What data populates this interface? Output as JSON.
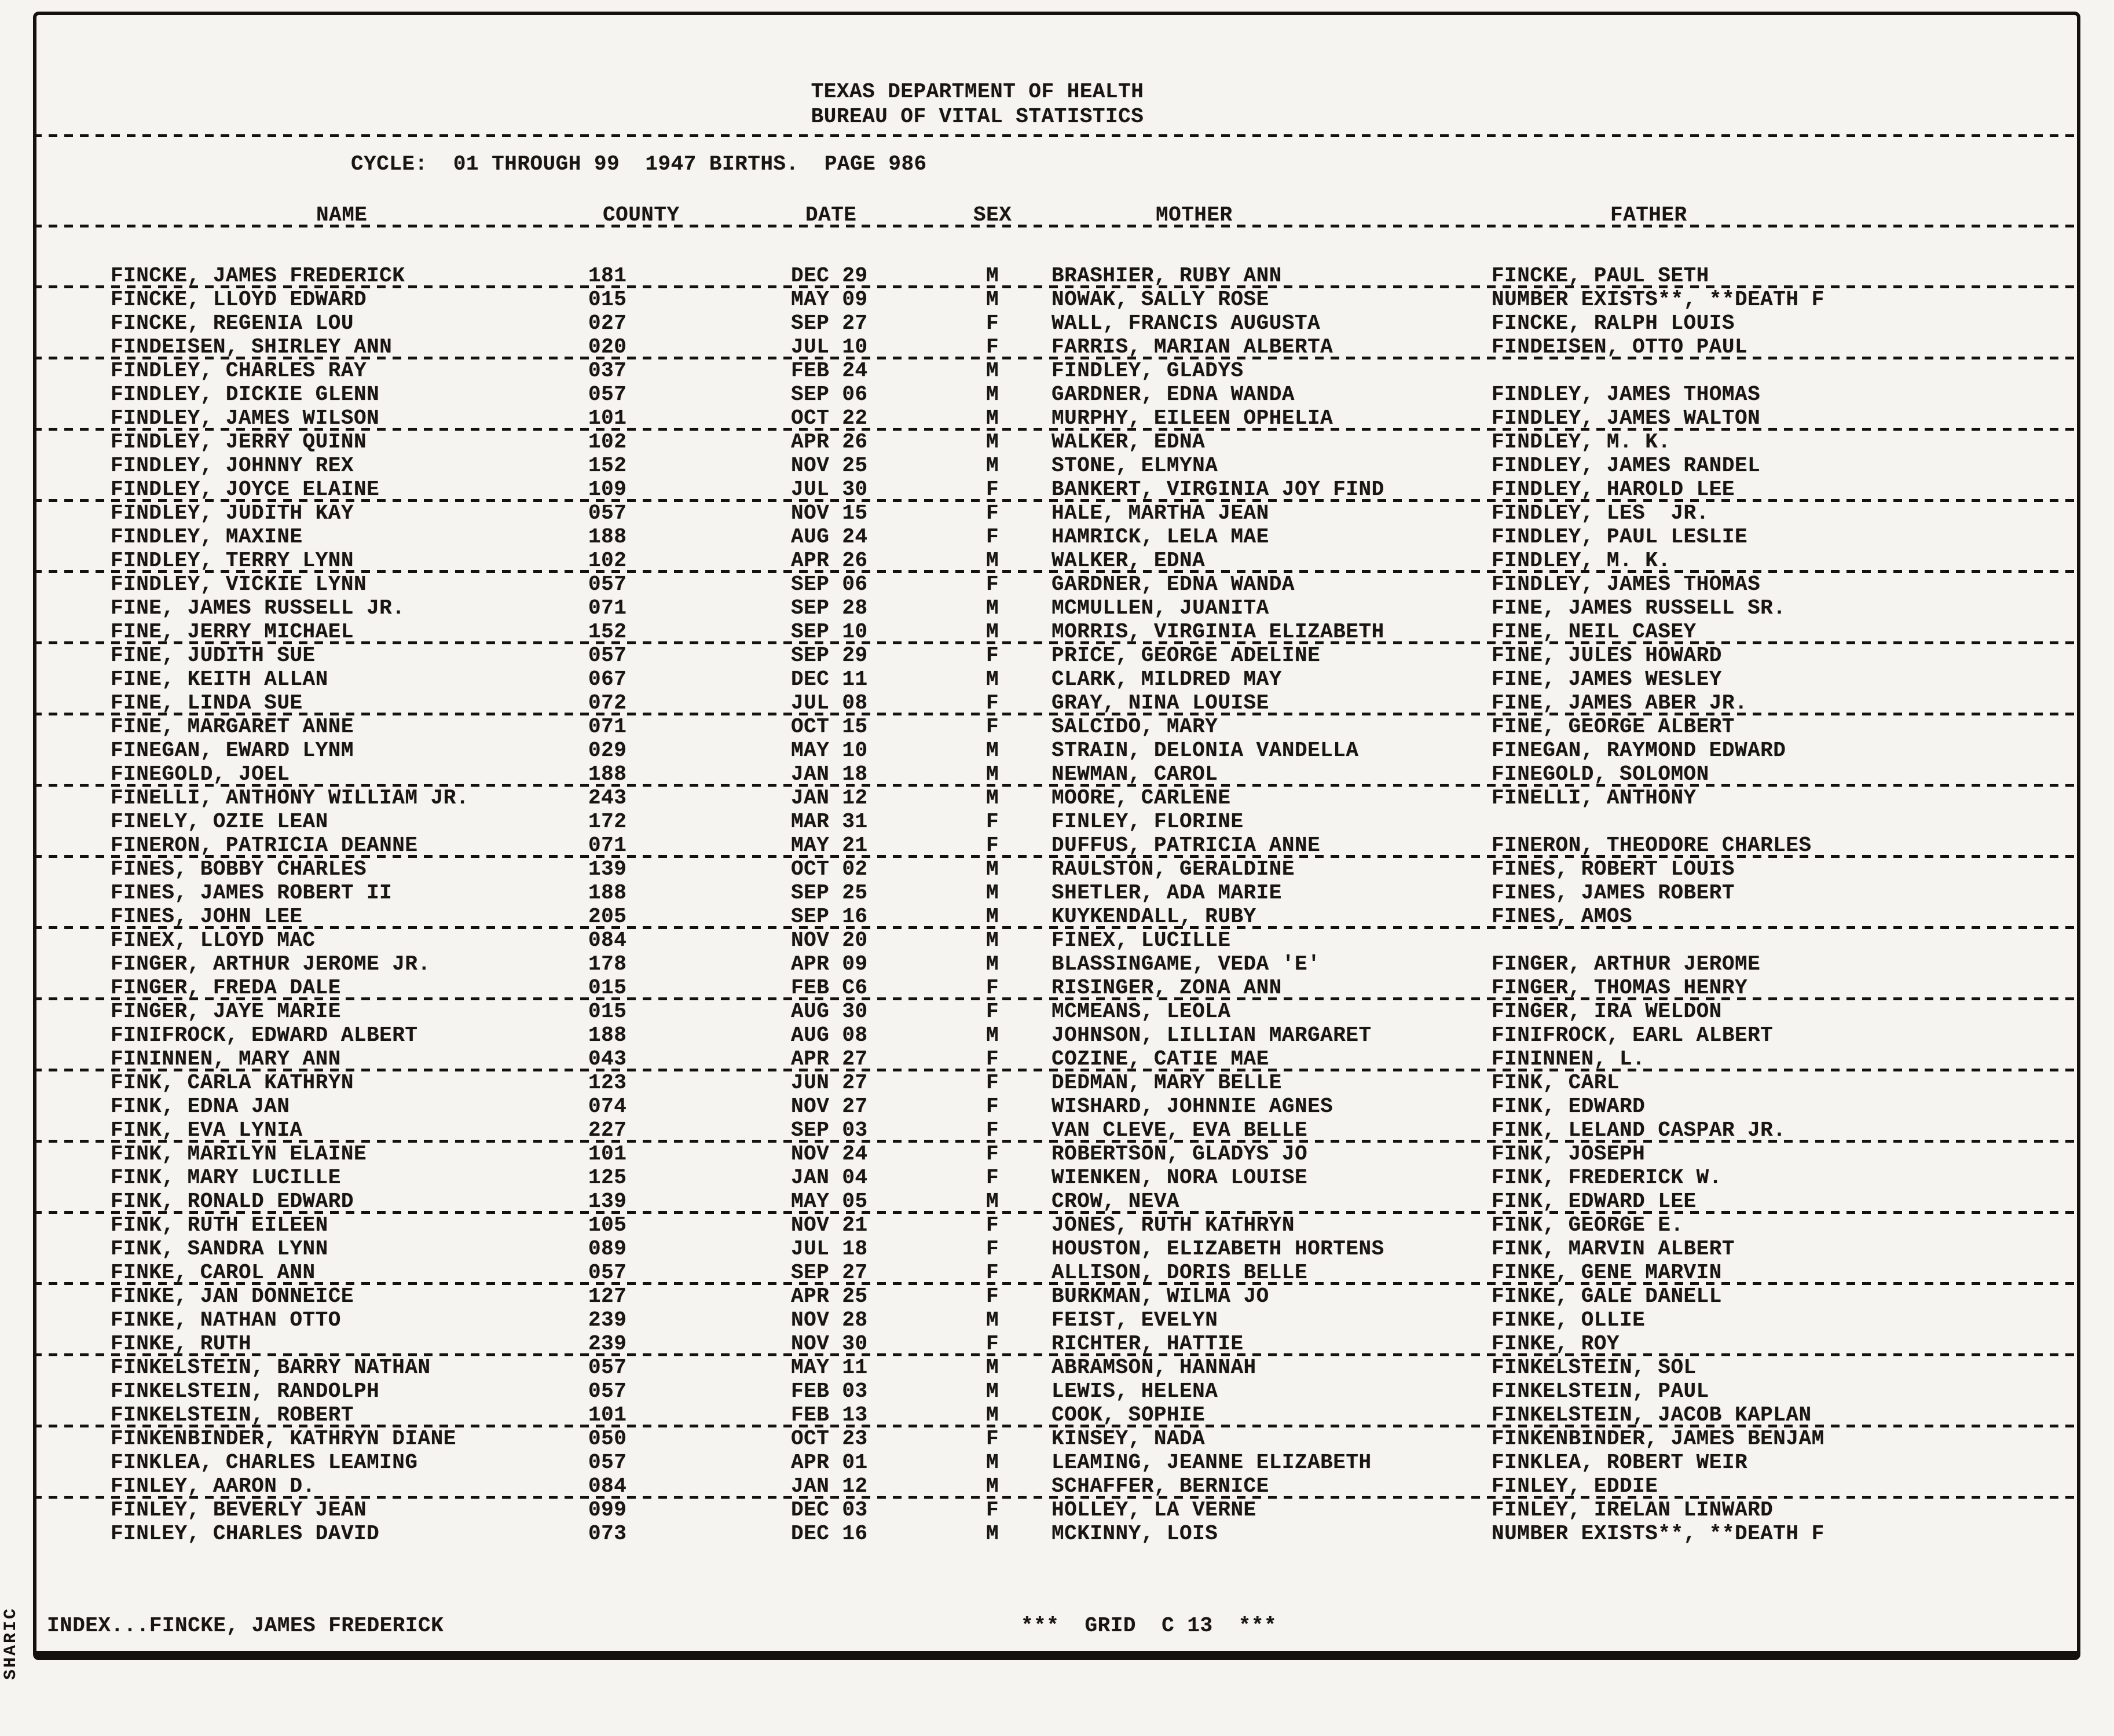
{
  "page": {
    "title_line1": "TEXAS DEPARTMENT OF HEALTH",
    "title_line2": "BUREAU OF VITAL STATISTICS",
    "cycle_line": "CYCLE:  01 THROUGH 99  1947 BIRTHS.  PAGE 986",
    "side_label": "SHARIC",
    "footer_index": "INDEX...FINCKE, JAMES FREDERICK",
    "footer_grid": "***  GRID  C 13  ***"
  },
  "columns": [
    "NAME",
    "COUNTY",
    "DATE",
    "SEX",
    "MOTHER",
    "FATHER"
  ],
  "rows": [
    {
      "name": "FINCKE, JAMES FREDERICK",
      "county": "181",
      "date": "DEC 29",
      "sex": "M",
      "mother": "BRASHIER, RUBY ANN",
      "father": "FINCKE, PAUL SETH",
      "ruled": true
    },
    {
      "name": "FINCKE, LLOYD EDWARD",
      "county": "015",
      "date": "MAY 09",
      "sex": "M",
      "mother": "NOWAK, SALLY ROSE",
      "father": "NUMBER EXISTS**, **DEATH F",
      "ruled": false
    },
    {
      "name": "FINCKE, REGENIA LOU",
      "county": "027",
      "date": "SEP 27",
      "sex": "F",
      "mother": "WALL, FRANCIS AUGUSTA",
      "father": "FINCKE, RALPH LOUIS",
      "ruled": false
    },
    {
      "name": "FINDEISEN, SHIRLEY ANN",
      "county": "020",
      "date": "JUL 10",
      "sex": "F",
      "mother": "FARRIS, MARIAN ALBERTA",
      "father": "FINDEISEN, OTTO PAUL",
      "ruled": true
    },
    {
      "name": "FINDLEY, CHARLES RAY",
      "county": "037",
      "date": "FEB 24",
      "sex": "M",
      "mother": "FINDLEY, GLADYS",
      "father": "",
      "ruled": false
    },
    {
      "name": "FINDLEY, DICKIE GLENN",
      "county": "057",
      "date": "SEP 06",
      "sex": "M",
      "mother": "GARDNER, EDNA WANDA",
      "father": "FINDLEY, JAMES THOMAS",
      "ruled": false
    },
    {
      "name": "FINDLEY, JAMES WILSON",
      "county": "101",
      "date": "OCT 22",
      "sex": "M",
      "mother": "MURPHY, EILEEN OPHELIA",
      "father": "FINDLEY, JAMES WALTON",
      "ruled": true
    },
    {
      "name": "FINDLEY, JERRY QUINN",
      "county": "102",
      "date": "APR 26",
      "sex": "M",
      "mother": "WALKER, EDNA",
      "father": "FINDLEY, M. K.",
      "ruled": false
    },
    {
      "name": "FINDLEY, JOHNNY REX",
      "county": "152",
      "date": "NOV 25",
      "sex": "M",
      "mother": "STONE, ELMYNA",
      "father": "FINDLEY, JAMES RANDEL",
      "ruled": false
    },
    {
      "name": "FINDLEY, JOYCE ELAINE",
      "county": "109",
      "date": "JUL 30",
      "sex": "F",
      "mother": "BANKERT, VIRGINIA JOY FIND",
      "father": "FINDLEY, HAROLD LEE",
      "ruled": true
    },
    {
      "name": "FINDLEY, JUDITH KAY",
      "county": "057",
      "date": "NOV 15",
      "sex": "F",
      "mother": "HALE, MARTHA JEAN",
      "father": "FINDLEY, LES  JR.",
      "ruled": false
    },
    {
      "name": "FINDLEY, MAXINE",
      "county": "188",
      "date": "AUG 24",
      "sex": "F",
      "mother": "HAMRICK, LELA MAE",
      "father": "FINDLEY, PAUL LESLIE",
      "ruled": false
    },
    {
      "name": "FINDLEY, TERRY LYNN",
      "county": "102",
      "date": "APR 26",
      "sex": "M",
      "mother": "WALKER, EDNA",
      "father": "FINDLEY, M. K.",
      "ruled": true
    },
    {
      "name": "FINDLEY, VICKIE LYNN",
      "county": "057",
      "date": "SEP 06",
      "sex": "F",
      "mother": "GARDNER, EDNA WANDA",
      "father": "FINDLEY, JAMES THOMAS",
      "ruled": false
    },
    {
      "name": "FINE, JAMES RUSSELL JR.",
      "county": "071",
      "date": "SEP 28",
      "sex": "M",
      "mother": "MCMULLEN, JUANITA",
      "father": "FINE, JAMES RUSSELL SR.",
      "ruled": false
    },
    {
      "name": "FINE, JERRY MICHAEL",
      "county": "152",
      "date": "SEP 10",
      "sex": "M",
      "mother": "MORRIS, VIRGINIA ELIZABETH",
      "father": "FINE, NEIL CASEY",
      "ruled": true
    },
    {
      "name": "FINE, JUDITH SUE",
      "county": "057",
      "date": "SEP 29",
      "sex": "F",
      "mother": "PRICE, GEORGE ADELINE",
      "father": "FINE, JULES HOWARD",
      "ruled": false
    },
    {
      "name": "FINE, KEITH ALLAN",
      "county": "067",
      "date": "DEC 11",
      "sex": "M",
      "mother": "CLARK, MILDRED MAY",
      "father": "FINE, JAMES WESLEY",
      "ruled": false
    },
    {
      "name": "FINE, LINDA SUE",
      "county": "072",
      "date": "JUL 08",
      "sex": "F",
      "mother": "GRAY, NINA LOUISE",
      "father": "FINE, JAMES ABER JR.",
      "ruled": true
    },
    {
      "name": "FINE, MARGARET ANNE",
      "county": "071",
      "date": "OCT 15",
      "sex": "F",
      "mother": "SALCIDO, MARY",
      "father": "FINE, GEORGE ALBERT",
      "ruled": false
    },
    {
      "name": "FINEGAN, EWARD LYNM",
      "county": "029",
      "date": "MAY 10",
      "sex": "M",
      "mother": "STRAIN, DELONIA VANDELLA",
      "father": "FINEGAN, RAYMOND EDWARD",
      "ruled": false
    },
    {
      "name": "FINEGOLD, JOEL",
      "county": "188",
      "date": "JAN 18",
      "sex": "M",
      "mother": "NEWMAN, CAROL",
      "father": "FINEGOLD, SOLOMON",
      "ruled": true
    },
    {
      "name": "FINELLI, ANTHONY WILLIAM JR.",
      "county": "243",
      "date": "JAN 12",
      "sex": "M",
      "mother": "MOORE, CARLENE",
      "father": "FINELLI, ANTHONY",
      "ruled": false
    },
    {
      "name": "FINELY, OZIE LEAN",
      "county": "172",
      "date": "MAR 31",
      "sex": "F",
      "mother": "FINLEY, FLORINE",
      "father": "",
      "ruled": false
    },
    {
      "name": "FINERON, PATRICIA DEANNE",
      "county": "071",
      "date": "MAY 21",
      "sex": "F",
      "mother": "DUFFUS, PATRICIA ANNE",
      "father": "FINERON, THEODORE CHARLES",
      "ruled": true
    },
    {
      "name": "FINES, BOBBY CHARLES",
      "county": "139",
      "date": "OCT 02",
      "sex": "M",
      "mother": "RAULSTON, GERALDINE",
      "father": "FINES, ROBERT LOUIS",
      "ruled": false
    },
    {
      "name": "FINES, JAMES ROBERT II",
      "county": "188",
      "date": "SEP 25",
      "sex": "M",
      "mother": "SHETLER, ADA MARIE",
      "father": "FINES, JAMES ROBERT",
      "ruled": false
    },
    {
      "name": "FINES, JOHN LEE",
      "county": "205",
      "date": "SEP 16",
      "sex": "M",
      "mother": "KUYKENDALL, RUBY",
      "father": "FINES, AMOS",
      "ruled": true
    },
    {
      "name": "FINEX, LLOYD MAC",
      "county": "084",
      "date": "NOV 20",
      "sex": "M",
      "mother": "FINEX, LUCILLE",
      "father": "",
      "ruled": false
    },
    {
      "name": "FINGER, ARTHUR JEROME JR.",
      "county": "178",
      "date": "APR 09",
      "sex": "M",
      "mother": "BLASSINGAME, VEDA 'E'",
      "father": "FINGER, ARTHUR JEROME",
      "ruled": false
    },
    {
      "name": "FINGER, FREDA DALE",
      "county": "015",
      "date": "FEB C6",
      "sex": "F",
      "mother": "RISINGER, ZONA ANN",
      "father": "FINGER, THOMAS HENRY",
      "ruled": true
    },
    {
      "name": "FINGER, JAYE MARIE",
      "county": "015",
      "date": "AUG 30",
      "sex": "F",
      "mother": "MCMEANS, LEOLA",
      "father": "FINGER, IRA WELDON",
      "ruled": false
    },
    {
      "name": "FINIFROCK, EDWARD ALBERT",
      "county": "188",
      "date": "AUG 08",
      "sex": "M",
      "mother": "JOHNSON, LILLIAN MARGARET",
      "father": "FINIFROCK, EARL ALBERT",
      "ruled": false
    },
    {
      "name": "FININNEN, MARY ANN",
      "county": "043",
      "date": "APR 27",
      "sex": "F",
      "mother": "COZINE, CATIE MAE",
      "father": "FININNEN, L.",
      "ruled": true
    },
    {
      "name": "FINK, CARLA KATHRYN",
      "county": "123",
      "date": "JUN 27",
      "sex": "F",
      "mother": "DEDMAN, MARY BELLE",
      "father": "FINK, CARL",
      "ruled": false
    },
    {
      "name": "FINK, EDNA JAN",
      "county": "074",
      "date": "NOV 27",
      "sex": "F",
      "mother": "WISHARD, JOHNNIE AGNES",
      "father": "FINK, EDWARD",
      "ruled": false
    },
    {
      "name": "FINK, EVA LYNIA",
      "county": "227",
      "date": "SEP 03",
      "sex": "F",
      "mother": "VAN CLEVE, EVA BELLE",
      "father": "FINK, LELAND CASPAR JR.",
      "ruled": true
    },
    {
      "name": "FINK, MARILYN ELAINE",
      "county": "101",
      "date": "NOV 24",
      "sex": "F",
      "mother": "ROBERTSON, GLADYS JO",
      "father": "FINK, JOSEPH",
      "ruled": false
    },
    {
      "name": "FINK, MARY LUCILLE",
      "county": "125",
      "date": "JAN 04",
      "sex": "F",
      "mother": "WIENKEN, NORA LOUISE",
      "father": "FINK, FREDERICK W.",
      "ruled": false
    },
    {
      "name": "FINK, RONALD EDWARD",
      "county": "139",
      "date": "MAY 05",
      "sex": "M",
      "mother": "CROW, NEVA",
      "father": "FINK, EDWARD LEE",
      "ruled": true
    },
    {
      "name": "FINK, RUTH EILEEN",
      "county": "105",
      "date": "NOV 21",
      "sex": "F",
      "mother": "JONES, RUTH KATHRYN",
      "father": "FINK, GEORGE E.",
      "ruled": false
    },
    {
      "name": "FINK, SANDRA LYNN",
      "county": "089",
      "date": "JUL 18",
      "sex": "F",
      "mother": "HOUSTON, ELIZABETH HORTENS",
      "father": "FINK, MARVIN ALBERT",
      "ruled": false
    },
    {
      "name": "FINKE, CAROL ANN",
      "county": "057",
      "date": "SEP 27",
      "sex": "F",
      "mother": "ALLISON, DORIS BELLE",
      "father": "FINKE, GENE MARVIN",
      "ruled": true
    },
    {
      "name": "FINKE, JAN DONNEICE",
      "county": "127",
      "date": "APR 25",
      "sex": "F",
      "mother": "BURKMAN, WILMA JO",
      "father": "FINKE, GALE DANELL",
      "ruled": false
    },
    {
      "name": "FINKE, NATHAN OTTO",
      "county": "239",
      "date": "NOV 28",
      "sex": "M",
      "mother": "FEIST, EVELYN",
      "father": "FINKE, OLLIE",
      "ruled": false
    },
    {
      "name": "FINKE, RUTH",
      "county": "239",
      "date": "NOV 30",
      "sex": "F",
      "mother": "RICHTER, HATTIE",
      "father": "FINKE, ROY",
      "ruled": true
    },
    {
      "name": "FINKELSTEIN, BARRY NATHAN",
      "county": "057",
      "date": "MAY 11",
      "sex": "M",
      "mother": "ABRAMSON, HANNAH",
      "father": "FINKELSTEIN, SOL",
      "ruled": false
    },
    {
      "name": "FINKELSTEIN, RANDOLPH",
      "county": "057",
      "date": "FEB 03",
      "sex": "M",
      "mother": "LEWIS, HELENA",
      "father": "FINKELSTEIN, PAUL",
      "ruled": false
    },
    {
      "name": "FINKELSTEIN, ROBERT",
      "county": "101",
      "date": "FEB 13",
      "sex": "M",
      "mother": "COOK, SOPHIE",
      "father": "FINKELSTEIN, JACOB KAPLAN",
      "ruled": true
    },
    {
      "name": "FINKENBINDER, KATHRYN DIANE",
      "county": "050",
      "date": "OCT 23",
      "sex": "F",
      "mother": "KINSEY, NADA",
      "father": "FINKENBINDER, JAMES BENJAM",
      "ruled": false
    },
    {
      "name": "FINKLEA, CHARLES LEAMING",
      "county": "057",
      "date": "APR 01",
      "sex": "M",
      "mother": "LEAMING, JEANNE ELIZABETH",
      "father": "FINKLEA, ROBERT WEIR",
      "ruled": false
    },
    {
      "name": "FINLEY, AARON D.",
      "county": "084",
      "date": "JAN 12",
      "sex": "M",
      "mother": "SCHAFFER, BERNICE",
      "father": "FINLEY, EDDIE",
      "ruled": true
    },
    {
      "name": "FINLEY, BEVERLY JEAN",
      "county": "099",
      "date": "DEC 03",
      "sex": "F",
      "mother": "HOLLEY, LA VERNE",
      "father": "FINLEY, IRELAN LINWARD",
      "ruled": false
    },
    {
      "name": "FINLEY, CHARLES DAVID",
      "county": "073",
      "date": "DEC 16",
      "sex": "M",
      "mother": "MCKINNY, LOIS",
      "father": "NUMBER EXISTS**, **DEATH F",
      "ruled": false
    }
  ]
}
